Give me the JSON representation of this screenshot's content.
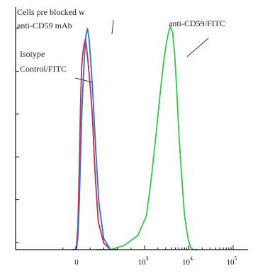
{
  "chart_data": {
    "type": "line",
    "title": "",
    "xlabel": "",
    "ylabel": "",
    "x_scale": "log",
    "x_ticks": [
      {
        "label": "0",
        "value": 0
      },
      {
        "label": "10",
        "exp": "3",
        "value": 1000
      },
      {
        "label": "10",
        "exp": "4",
        "value": 10000
      },
      {
        "label": "10",
        "exp": "5",
        "value": 100000
      }
    ],
    "ylim": [
      0,
      100
    ],
    "y_tick_count": 6,
    "series": [
      {
        "name": "Cells pre blocked w anti-CD59 mAb",
        "color": "#c0304a",
        "points": [
          [
            -60,
            0
          ],
          [
            -20,
            0
          ],
          [
            0,
            2
          ],
          [
            20,
            10
          ],
          [
            40,
            35
          ],
          [
            60,
            65
          ],
          [
            75,
            80
          ],
          [
            90,
            85
          ],
          [
            110,
            90
          ],
          [
            130,
            92
          ],
          [
            150,
            88
          ],
          [
            175,
            80
          ],
          [
            200,
            72
          ],
          [
            230,
            60
          ],
          [
            270,
            35
          ],
          [
            320,
            12
          ],
          [
            400,
            3
          ],
          [
            500,
            0
          ],
          [
            600,
            0
          ]
        ]
      },
      {
        "name": "Isotype Control/FITC",
        "color": "#3a6fc8",
        "points": [
          [
            -60,
            0
          ],
          [
            -20,
            0
          ],
          [
            0,
            1
          ],
          [
            20,
            5
          ],
          [
            40,
            20
          ],
          [
            60,
            42
          ],
          [
            80,
            62
          ],
          [
            100,
            75
          ],
          [
            120,
            86
          ],
          [
            140,
            94
          ],
          [
            160,
            97
          ],
          [
            185,
            92
          ],
          [
            210,
            82
          ],
          [
            240,
            68
          ],
          [
            280,
            45
          ],
          [
            330,
            20
          ],
          [
            400,
            5
          ],
          [
            500,
            0
          ],
          [
            600,
            0
          ]
        ]
      },
      {
        "name": "anti-CD59/FITC",
        "color": "#3cc24c",
        "points": [
          [
            300,
            0
          ],
          [
            500,
            0
          ],
          [
            700,
            2
          ],
          [
            900,
            6
          ],
          [
            1100,
            15
          ],
          [
            1400,
            30
          ],
          [
            1800,
            50
          ],
          [
            2300,
            70
          ],
          [
            2800,
            85
          ],
          [
            3300,
            93
          ],
          [
            3800,
            98
          ],
          [
            4300,
            95
          ],
          [
            4800,
            85
          ],
          [
            5300,
            70
          ],
          [
            6000,
            50
          ],
          [
            7000,
            30
          ],
          [
            8000,
            15
          ],
          [
            9500,
            5
          ],
          [
            11000,
            1
          ],
          [
            13000,
            0
          ],
          [
            16000,
            0
          ]
        ]
      }
    ],
    "annotations": [
      {
        "lines": [
          "Cells pre blocked w",
          "anti-CD59 mAb"
        ]
      },
      {
        "lines": [
          "Isotype",
          "Control/FITC"
        ]
      },
      {
        "lines": [
          "anti-CD59/FITC"
        ]
      }
    ]
  }
}
